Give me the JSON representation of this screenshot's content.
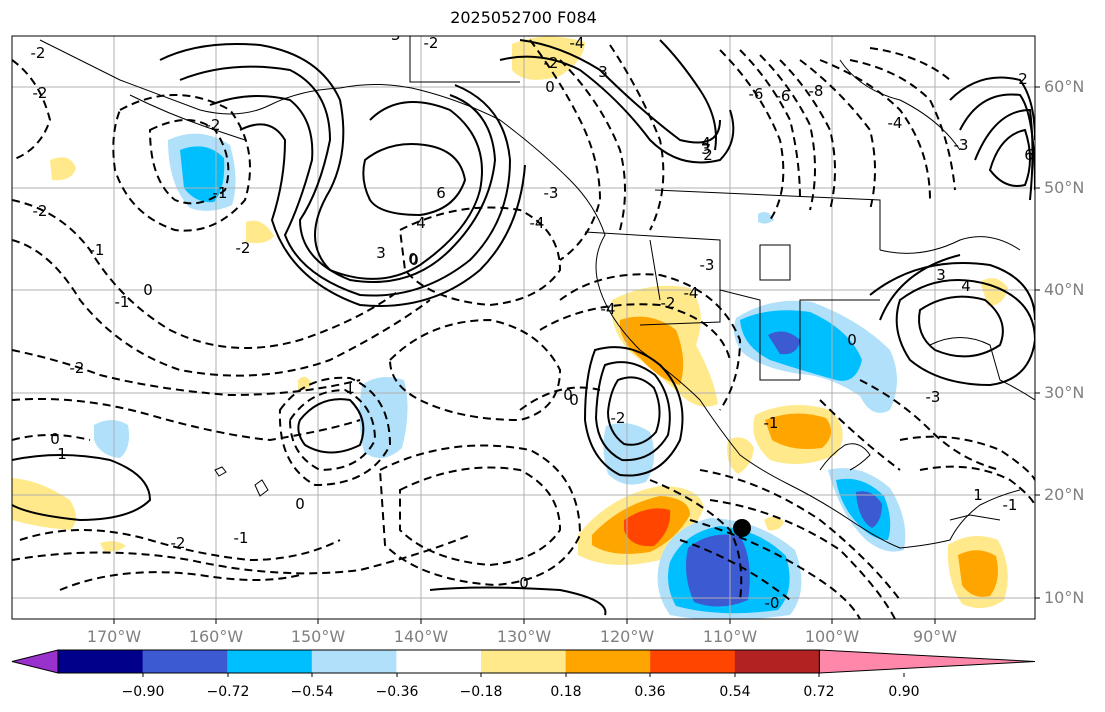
{
  "title": "2025052700 F084",
  "lat_labels": [
    "60°N",
    "50°N",
    "40°N",
    "30°N",
    "20°N",
    "10°N"
  ],
  "lon_labels": [
    "170°W",
    "160°W",
    "150°W",
    "140°W",
    "130°W",
    "120°W",
    "110°W",
    "100°W",
    "90°W"
  ],
  "contour_labels": [
    "-2",
    "-2",
    "-2",
    "-1",
    "0",
    "-1",
    "-2",
    "-2",
    "-2",
    "-1",
    "0",
    "1",
    "-2",
    "-1",
    "0",
    "1",
    "3",
    "4",
    "6",
    "-2",
    "3",
    "-3",
    "-4",
    "-2",
    "-3",
    "-4",
    "2",
    "3",
    "4",
    "-6",
    "-8",
    "-6",
    "-4",
    "-3",
    "3",
    "4",
    "6",
    "2",
    "-3",
    "-4",
    "-2",
    "-1",
    "0",
    "0",
    "-2",
    "-4",
    "-3",
    "0",
    "0",
    "0",
    "-0",
    "0",
    "1",
    "-1",
    "0"
  ],
  "colorbar": {
    "ticks": [
      "−0.90",
      "−0.72",
      "−0.54",
      "−0.36",
      "−0.18",
      "0.18",
      "0.36",
      "0.54",
      "0.72",
      "0.90"
    ],
    "colors": [
      "#9932cc",
      "#00008b",
      "#3c5ad2",
      "#00bfff",
      "#b0e0fa",
      "#ffffff",
      "#ffe98a",
      "#ffa500",
      "#ff4500",
      "#b22222",
      "#ff88aa"
    ]
  }
}
